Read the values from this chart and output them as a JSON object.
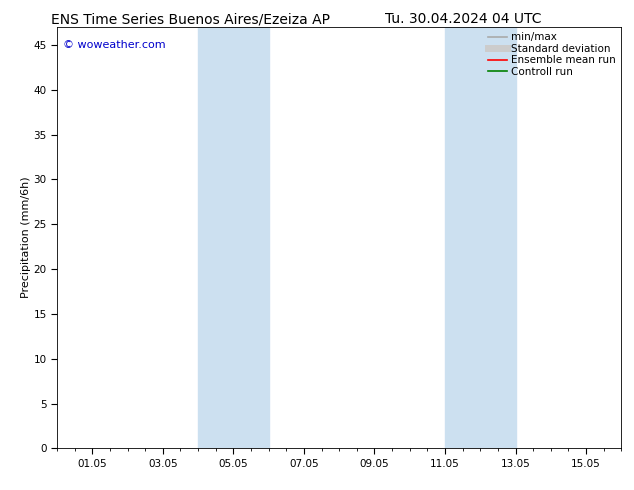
{
  "title_left": "ENS Time Series Buenos Aires/Ezeiza AP",
  "title_right": "Tu. 30.04.2024 04 UTC",
  "xlabel": "",
  "ylabel": "Precipitation (mm/6h)",
  "watermark": "© woweather.com",
  "ylim": [
    0,
    47
  ],
  "yticks": [
    0,
    5,
    10,
    15,
    20,
    25,
    30,
    35,
    40,
    45
  ],
  "x_tick_labels": [
    "01.05",
    "03.05",
    "05.05",
    "07.05",
    "09.05",
    "11.05",
    "13.05",
    "15.05"
  ],
  "x_tick_positions": [
    1,
    3,
    5,
    7,
    9,
    11,
    13,
    15
  ],
  "xlim": [
    0,
    16
  ],
  "shaded_bands": [
    {
      "x_start": 4.0,
      "x_end": 6.0
    },
    {
      "x_start": 11.0,
      "x_end": 13.0
    }
  ],
  "shade_color": "#cce0f0",
  "background_color": "#ffffff",
  "legend_items": [
    {
      "label": "min/max",
      "color": "#aaaaaa",
      "lw": 1.2,
      "style": "solid"
    },
    {
      "label": "Standard deviation",
      "color": "#cccccc",
      "lw": 5,
      "style": "solid"
    },
    {
      "label": "Ensemble mean run",
      "color": "#ff0000",
      "lw": 1.2,
      "style": "solid"
    },
    {
      "label": "Controll run",
      "color": "#008000",
      "lw": 1.2,
      "style": "solid"
    }
  ],
  "watermark_color": "#0000cc",
  "title_fontsize": 10,
  "axis_label_fontsize": 8,
  "tick_fontsize": 7.5,
  "legend_fontsize": 7.5,
  "watermark_fontsize": 8
}
